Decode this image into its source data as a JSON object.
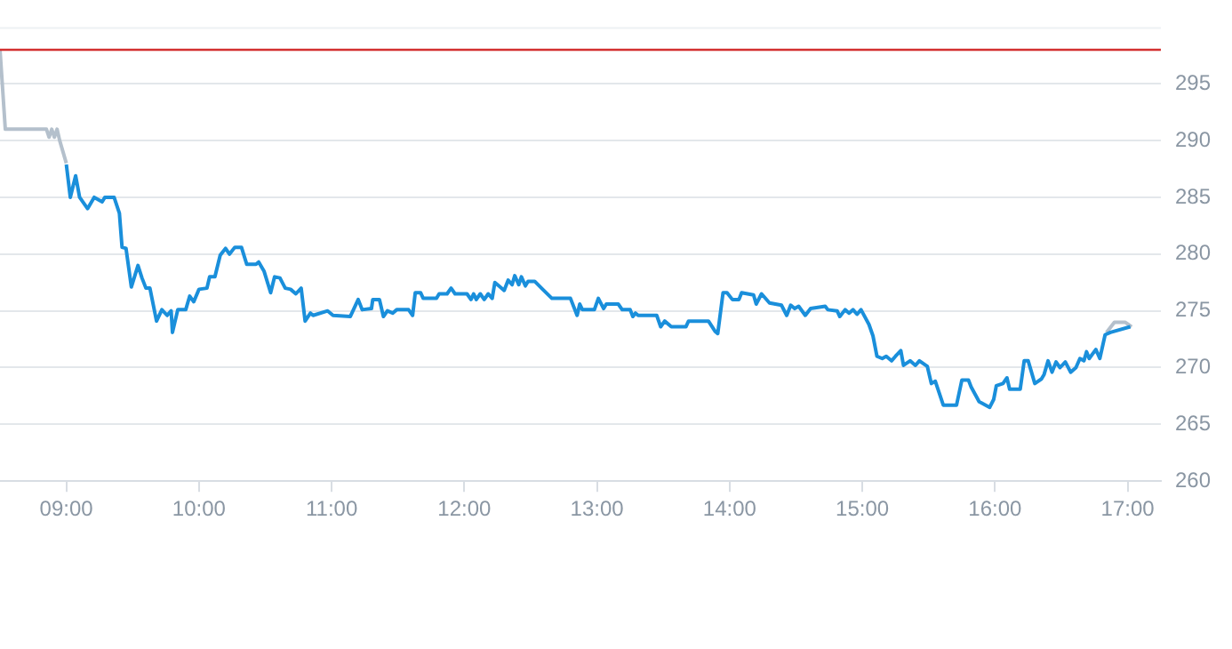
{
  "chart_data": {
    "type": "line",
    "xlim": [
      8.5,
      17.25
    ],
    "ylim": [
      260,
      300
    ],
    "xticks": [
      {
        "value": 9,
        "label": "09:00"
      },
      {
        "value": 10,
        "label": "10:00"
      },
      {
        "value": 11,
        "label": "11:00"
      },
      {
        "value": 12,
        "label": "12:00"
      },
      {
        "value": 13,
        "label": "13:00"
      },
      {
        "value": 14,
        "label": "14:00"
      },
      {
        "value": 15,
        "label": "15:00"
      },
      {
        "value": 16,
        "label": "16:00"
      },
      {
        "value": 17,
        "label": "17:00"
      }
    ],
    "yticks": [
      260,
      265,
      270,
      275,
      280,
      285,
      290,
      295
    ],
    "grid": "y",
    "marker": "none",
    "line_style": "solid",
    "ref_lines": [
      {
        "axis": "y",
        "value": 298,
        "color": "#d32f2f"
      }
    ],
    "series": [
      {
        "color": "#b4c0cc",
        "x": [
          8.5,
          8.54,
          8.85,
          8.87,
          8.89,
          8.91,
          8.93,
          8.95,
          9.0
        ],
        "values": [
          298,
          291,
          291,
          290.3,
          291,
          290.3,
          291,
          290,
          288
        ]
      },
      {
        "color": "#1a8fdb",
        "x": [
          9.0,
          9.03,
          9.07,
          9.1,
          9.16,
          9.21,
          9.27,
          9.29,
          9.36,
          9.4,
          9.42,
          9.45,
          9.49,
          9.54,
          9.57,
          9.6,
          9.63,
          9.68,
          9.72,
          9.76,
          9.79,
          9.8,
          9.84,
          9.9,
          9.93,
          9.96,
          10.0,
          10.06,
          10.08,
          10.12,
          10.16,
          10.2,
          10.23,
          10.27,
          10.32,
          10.36,
          10.43,
          10.45,
          10.49,
          10.54,
          10.57,
          10.61,
          10.65,
          10.69,
          10.73,
          10.77,
          10.8,
          10.84,
          10.86,
          10.97,
          11.01,
          11.14,
          11.2,
          11.23,
          11.3,
          11.31,
          11.36,
          11.39,
          11.42,
          11.46,
          11.49,
          11.58,
          11.61,
          11.63,
          11.67,
          11.69,
          11.79,
          11.81,
          11.87,
          11.9,
          11.93,
          12.02,
          12.05,
          12.07,
          12.09,
          12.12,
          12.15,
          12.18,
          12.21,
          12.23,
          12.26,
          12.3,
          12.33,
          12.36,
          12.38,
          12.41,
          12.43,
          12.46,
          12.48,
          12.53,
          12.59,
          12.66,
          12.8,
          12.85,
          12.87,
          12.89,
          12.98,
          13.01,
          13.05,
          13.07,
          13.16,
          13.19,
          13.25,
          13.27,
          13.29,
          13.31,
          13.45,
          13.48,
          13.51,
          13.56,
          13.67,
          13.69,
          13.84,
          13.89,
          13.91,
          13.95,
          13.98,
          14.02,
          14.07,
          14.09,
          14.18,
          14.2,
          14.24,
          14.3,
          14.39,
          14.43,
          14.46,
          14.49,
          14.52,
          14.57,
          14.61,
          14.72,
          14.74,
          14.81,
          14.83,
          14.87,
          14.9,
          14.93,
          14.96,
          14.99,
          15.05,
          15.08,
          15.11,
          15.15,
          15.18,
          15.22,
          15.25,
          15.29,
          15.31,
          15.36,
          15.4,
          15.43,
          15.49,
          15.52,
          15.55,
          15.61,
          15.71,
          15.75,
          15.8,
          15.82,
          15.88,
          15.96,
          15.99,
          16.01,
          16.06,
          16.09,
          16.11,
          16.19,
          16.22,
          16.25,
          16.3,
          16.35,
          16.37,
          16.4,
          16.43,
          16.46,
          16.49,
          16.53,
          16.57,
          16.61,
          16.64,
          16.67,
          16.69,
          16.71,
          16.76,
          16.79,
          16.83,
          16.87,
          17.02
        ],
        "values": [
          287.9,
          285,
          286.9,
          285,
          284,
          285,
          284.6,
          285,
          285,
          283.6,
          280.6,
          280.5,
          277.1,
          279,
          277.9,
          277,
          277,
          274.1,
          275.1,
          274.6,
          275,
          273.1,
          275.1,
          275.1,
          276.3,
          275.8,
          276.9,
          277,
          278,
          278,
          279.9,
          280.5,
          280,
          280.6,
          280.6,
          279.1,
          279.1,
          279.3,
          278.5,
          276.6,
          278,
          277.9,
          277,
          276.9,
          276.5,
          277,
          274.1,
          274.8,
          274.6,
          275,
          274.6,
          274.5,
          276,
          275.1,
          275.2,
          276,
          276,
          274.5,
          275,
          274.8,
          275.1,
          275.1,
          274.6,
          276.6,
          276.6,
          276.1,
          276.1,
          276.5,
          276.5,
          277,
          276.5,
          276.5,
          276,
          276.5,
          276,
          276.5,
          276,
          276.5,
          276.1,
          277.5,
          277.2,
          276.8,
          277.7,
          277.3,
          278.1,
          277.3,
          278,
          277.2,
          277.6,
          277.6,
          276.9,
          276.1,
          276.1,
          274.6,
          275.6,
          275.1,
          275.1,
          276.1,
          275.2,
          275.6,
          275.6,
          275.1,
          275.1,
          274.5,
          274.8,
          274.6,
          274.6,
          273.6,
          274.1,
          273.6,
          273.6,
          274.1,
          274.1,
          273.2,
          273,
          276.6,
          276.6,
          276,
          276,
          276.6,
          276.4,
          275.6,
          276.5,
          275.7,
          275.5,
          274.6,
          275.5,
          275.2,
          275.4,
          274.6,
          275.2,
          275.4,
          275.1,
          275,
          274.5,
          275.1,
          274.8,
          275.1,
          274.7,
          275.1,
          273.8,
          272.8,
          271,
          270.8,
          271,
          270.6,
          271,
          271.5,
          270.2,
          270.6,
          270.2,
          270.6,
          270.1,
          268.6,
          268.8,
          266.7,
          266.7,
          268.9,
          268.9,
          268.3,
          267,
          266.5,
          267.2,
          268.4,
          268.6,
          269.1,
          268.1,
          268.1,
          270.6,
          270.6,
          268.6,
          269,
          269.4,
          270.6,
          269.6,
          270.5,
          270,
          270.5,
          269.6,
          270,
          270.8,
          270.6,
          271.4,
          270.8,
          271.6,
          270.8,
          272.9,
          273.1,
          273.6
        ]
      },
      {
        "color": "#b4c0cc",
        "x": [
          16.84,
          16.9,
          16.98,
          17.03
        ],
        "values": [
          273.1,
          274,
          274,
          273.6
        ]
      }
    ]
  }
}
